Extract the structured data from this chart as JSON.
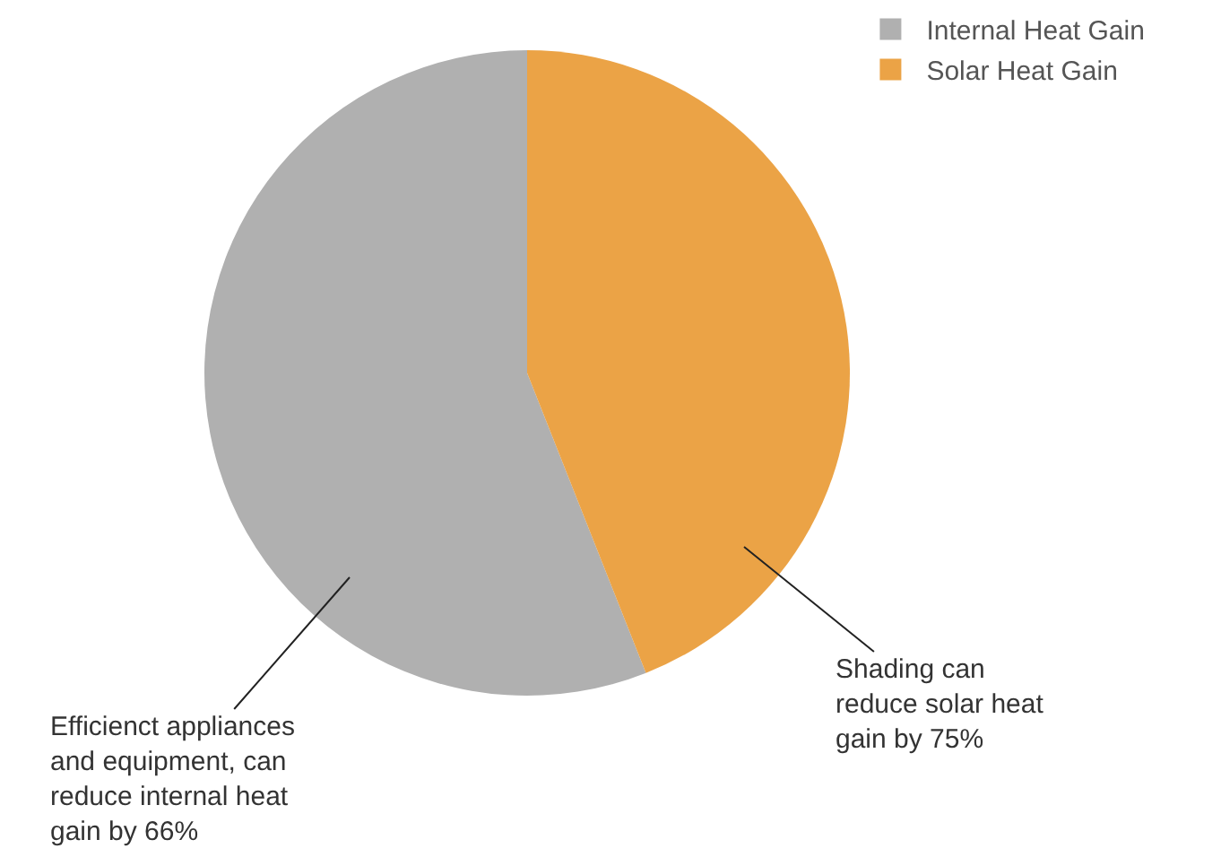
{
  "chart_data": {
    "type": "pie",
    "categories": [
      "Internal Heat Gain",
      "Solar Heat Gain"
    ],
    "values": [
      56,
      44
    ],
    "colors": [
      "#b0b0b0",
      "#eba346"
    ],
    "legend": "top right",
    "annotations": [
      "Efficienct appliances\nand equipment, can\nreduce internal heat\ngain by 66%",
      "Shading can\nreduce solar heat\ngain by 75%"
    ]
  }
}
